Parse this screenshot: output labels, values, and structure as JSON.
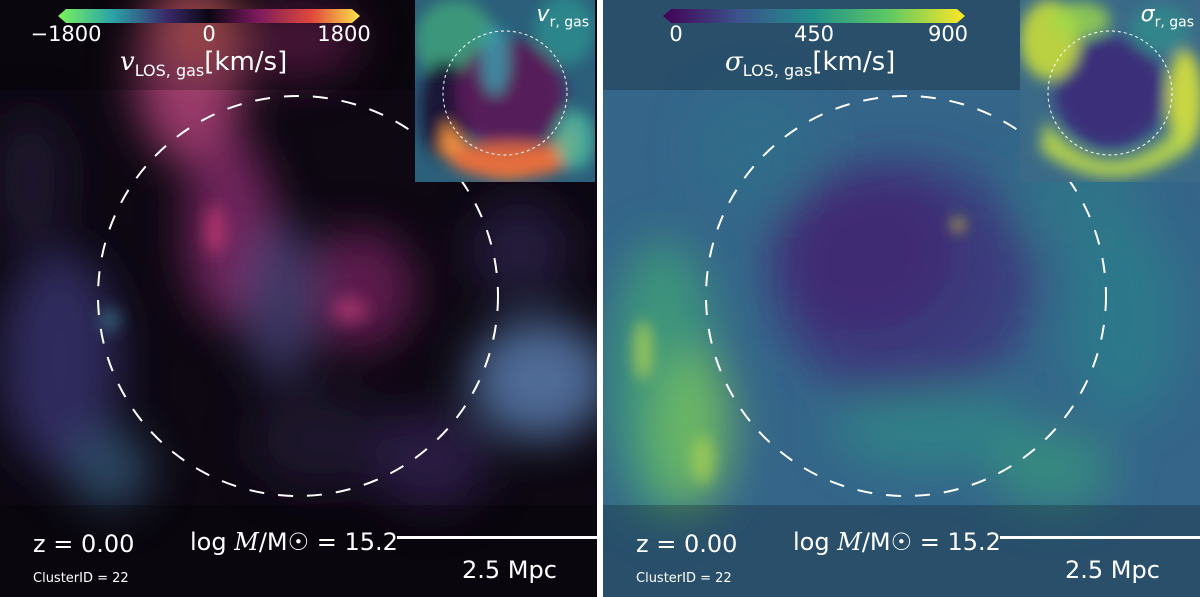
{
  "panels": [
    {
      "id": "velocity",
      "colorbar": {
        "ticks": [
          "−1800",
          "0",
          "1800"
        ],
        "title_symbol": "v",
        "title_subscript": "LOS, gas",
        "title_unit": "[km/s]",
        "colormap": "velocity-diverging",
        "colors": [
          "#7cf25a",
          "#2aa3a8",
          "#3a2a6a",
          "#0b0612",
          "#7a1a5c",
          "#e0483a",
          "#fde34a"
        ]
      },
      "inset": {
        "symbol": "v",
        "subscript": "r, gas"
      },
      "annotations": {
        "redshift": "z = 0.00",
        "cluster_id": "ClusterID = 22",
        "mass_prefix": "log",
        "mass_symbol": "M",
        "mass_suffix": "/M☉ = 15.2",
        "scale_label": "2.5 Mpc"
      }
    },
    {
      "id": "dispersion",
      "colorbar": {
        "ticks": [
          "0",
          "450",
          "900"
        ],
        "title_symbol": "σ",
        "title_subscript": "LOS, gas",
        "title_unit": "[km/s]",
        "colormap": "viridis",
        "colors": [
          "#440154",
          "#3b528b",
          "#21918c",
          "#5ec962",
          "#fde725"
        ]
      },
      "inset": {
        "symbol": "σ",
        "subscript": "r, gas"
      },
      "annotations": {
        "redshift": "z = 0.00",
        "cluster_id": "ClusterID = 22",
        "mass_prefix": "log",
        "mass_symbol": "M",
        "mass_suffix": "/M☉ = 15.2",
        "scale_label": "2.5 Mpc"
      }
    }
  ]
}
